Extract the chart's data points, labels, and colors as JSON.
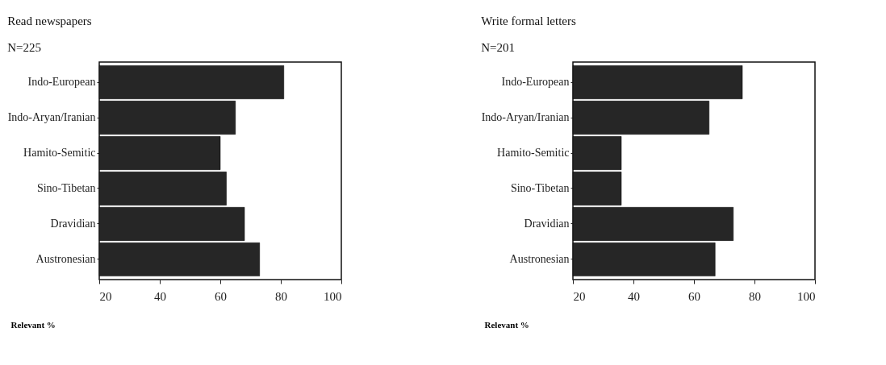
{
  "chart_data": [
    {
      "type": "bar",
      "orientation": "horizontal",
      "title": "Read newspapers",
      "subtitle": "N=225",
      "xlabel": "Relevant %",
      "categories": [
        "Indo-European",
        "Indo-Aryan/Iranian",
        "Hamito-Semitic",
        "Sino-Tibetan",
        "Dravidian",
        "Austronesian"
      ],
      "values": [
        81,
        65,
        60,
        62,
        68,
        73
      ],
      "color": "#262626",
      "xlim": [
        20,
        100
      ],
      "xticks": [
        20,
        40,
        60,
        80,
        100
      ]
    },
    {
      "type": "bar",
      "orientation": "horizontal",
      "title": "Write formal letters",
      "subtitle": "N=201",
      "xlabel": "Relevant %",
      "categories": [
        "Indo-European",
        "Indo-Aryan/Iranian",
        "Hamito-Semitic",
        "Sino-Tibetan",
        "Dravidian",
        "Austronesian"
      ],
      "values": [
        76,
        65,
        36,
        36,
        73,
        67
      ],
      "color": "#262626",
      "xlim": [
        20,
        100
      ],
      "xticks": [
        20,
        40,
        60,
        80,
        100
      ]
    }
  ]
}
